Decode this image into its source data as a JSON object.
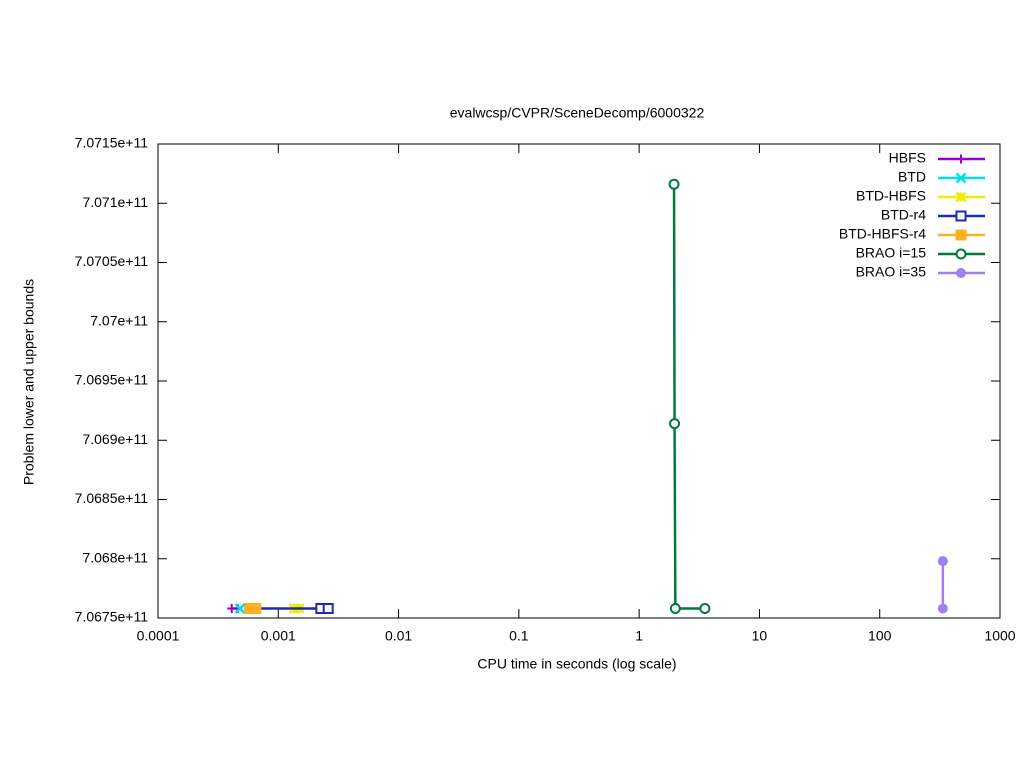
{
  "chart_data": {
    "type": "line",
    "title": "evalwcsp/CVPR/SceneDecomp/6000322",
    "x_label": "CPU time in seconds (log scale)",
    "y_label": "Problem lower and upper bounds",
    "x_log_scale": true,
    "xlim": [
      0.0001,
      1000
    ],
    "xticks": [
      0.0001,
      0.001,
      0.01,
      0.1,
      1,
      10,
      100,
      1000
    ],
    "ylim": [
      706750000000,
      707150000000
    ],
    "yticks": [
      {
        "value": 706750000000,
        "label": "7.0675e+11"
      },
      {
        "value": 706800000000,
        "label": "7.068e+11"
      },
      {
        "value": 706850000000,
        "label": "7.0685e+11"
      },
      {
        "value": 706900000000,
        "label": "7.069e+11"
      },
      {
        "value": 706950000000,
        "label": "7.0695e+11"
      },
      {
        "value": 707000000000,
        "label": "7.07e+11"
      },
      {
        "value": 707050000000,
        "label": "7.0705e+11"
      },
      {
        "value": 707100000000,
        "label": "7.071e+11"
      },
      {
        "value": 707150000000,
        "label": "7.0715e+11"
      }
    ],
    "legend": "top-right",
    "series": [
      {
        "name": "HBFS",
        "color": "#9400d3",
        "marker": "plus",
        "x": [
          0.00041,
          0.00046
        ],
        "values": [
          706758000000,
          706758000000
        ]
      },
      {
        "name": "BTD",
        "color": "#00e0e0",
        "marker": "cross",
        "x": [
          0.00048
        ],
        "values": [
          706758000000
        ]
      },
      {
        "name": "BTD-HBFS",
        "color": "#eeee00",
        "marker": "star",
        "x": [
          0.00135,
          0.0015
        ],
        "values": [
          706758000000,
          706758000000
        ]
      },
      {
        "name": "BTD-r4",
        "color": "#1f2ab0",
        "marker": "square",
        "x": [
          0.00058,
          0.00226,
          0.0026
        ],
        "values": [
          706758000000,
          706758000000,
          706758000000
        ]
      },
      {
        "name": "BTD-HBFS-r4",
        "color": "#ffb020",
        "marker": "filled-square",
        "x": [
          0.00058,
          0.00065
        ],
        "values": [
          706758000000,
          706758000000
        ]
      },
      {
        "name": "BRAO i=15",
        "color": "#007a3d",
        "marker": "circle",
        "x": [
          1.95,
          1.97,
          2.0,
          3.52
        ],
        "values": [
          707116000000,
          706914000000,
          706758000000,
          706758000000
        ]
      },
      {
        "name": "BRAO i=35",
        "color": "#a080f0",
        "marker": "filled-circle",
        "x": [
          335,
          335
        ],
        "values": [
          706798000000,
          706758000000
        ]
      }
    ]
  }
}
